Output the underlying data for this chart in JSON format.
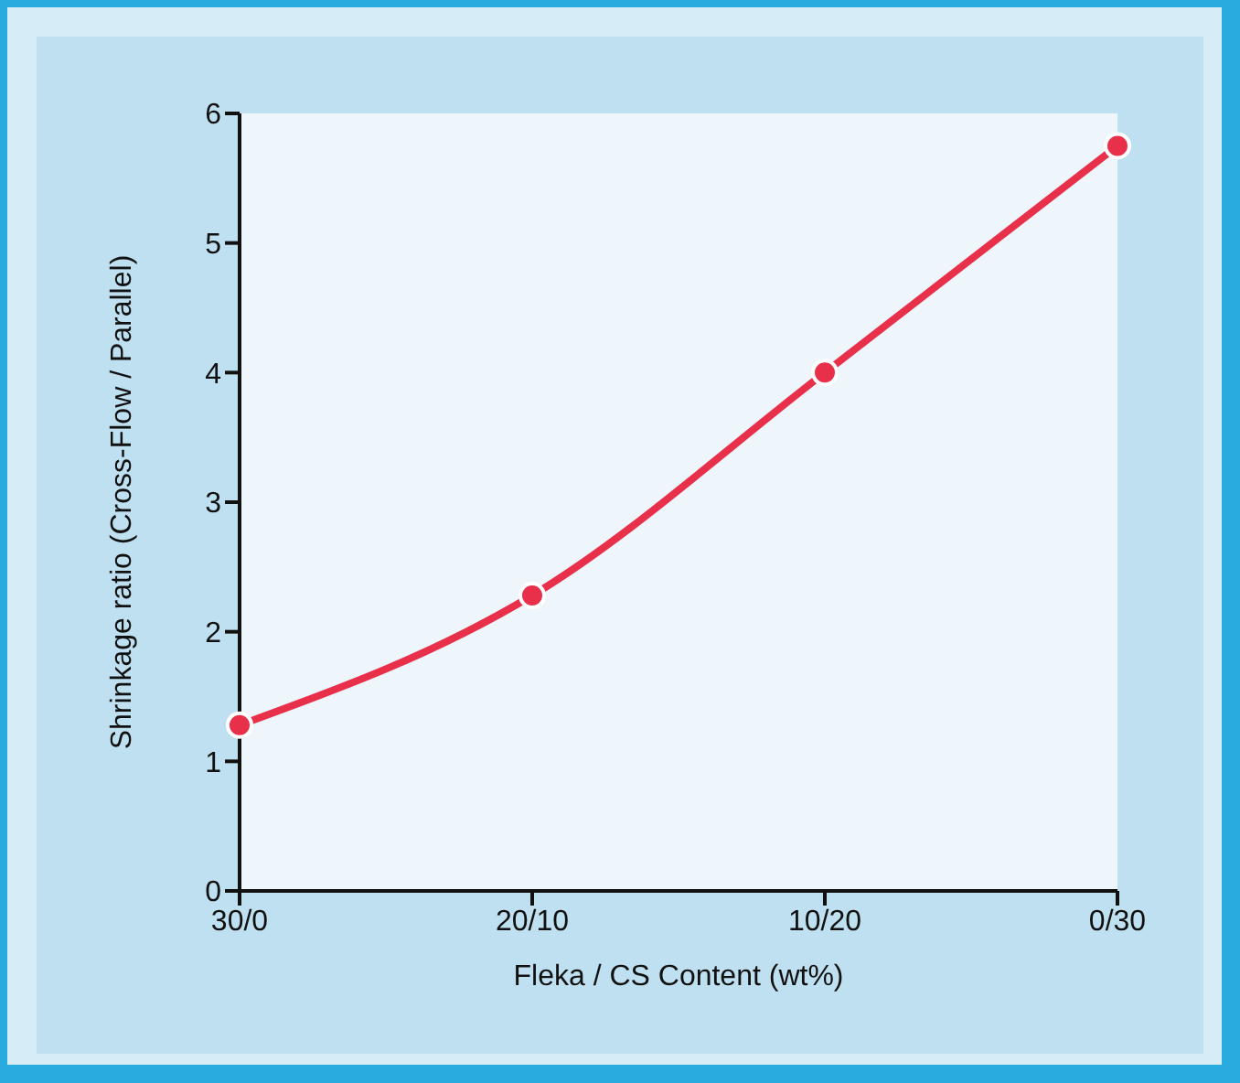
{
  "chart_data": {
    "type": "line",
    "xlabel": "Fleka / CS Content (wt%)",
    "ylabel": "Shrinkage ratio (Cross-Flow / Parallel)",
    "categories": [
      "30/0",
      "20/10",
      "10/20",
      "0/30"
    ],
    "series": [
      {
        "color": "#e8304a",
        "values": [
          1.28,
          2.28,
          4.0,
          5.75
        ]
      }
    ],
    "ylim": [
      0,
      6
    ],
    "yticks": [
      0,
      1,
      2,
      3,
      4,
      5,
      6
    ],
    "grid": false,
    "legend": false,
    "marker": "circle",
    "line_style": "solid"
  }
}
